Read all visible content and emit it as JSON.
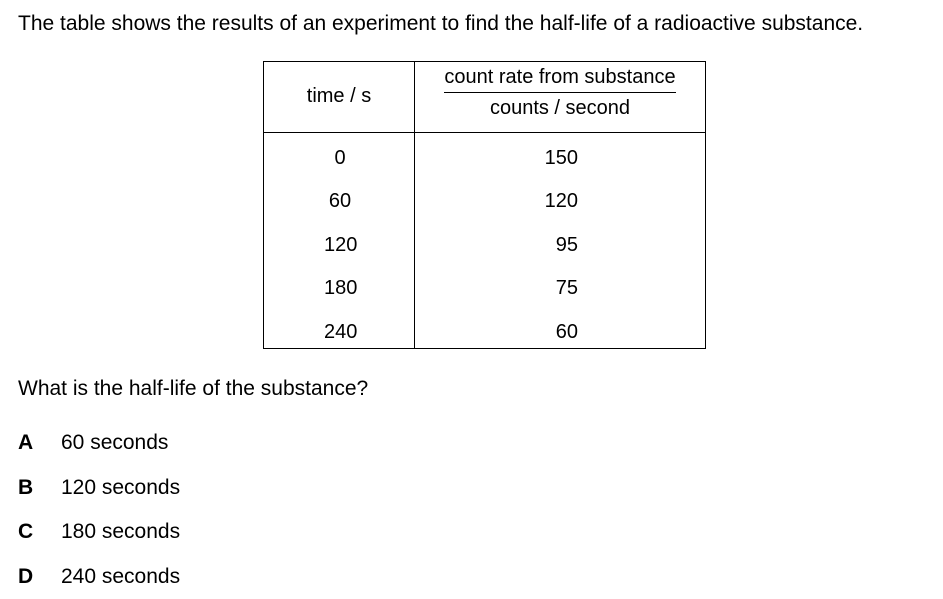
{
  "intro": "The table shows the results of an experiment to find the half-life of a radioactive substance.",
  "table": {
    "header_time": "time / s",
    "header_count_top": "count rate from substance",
    "header_count_bottom": "counts / second",
    "rows": [
      {
        "time": "0",
        "count": "150"
      },
      {
        "time": "60",
        "count": "120"
      },
      {
        "time": "120",
        "count": "95"
      },
      {
        "time": "180",
        "count": "75"
      },
      {
        "time": "240",
        "count": "60"
      }
    ]
  },
  "question": "What is the half-life of the substance?",
  "options": [
    {
      "letter": "A",
      "text": "60 seconds"
    },
    {
      "letter": "B",
      "text": "120 seconds"
    },
    {
      "letter": "C",
      "text": "180 seconds"
    },
    {
      "letter": "D",
      "text": "240 seconds"
    }
  ]
}
